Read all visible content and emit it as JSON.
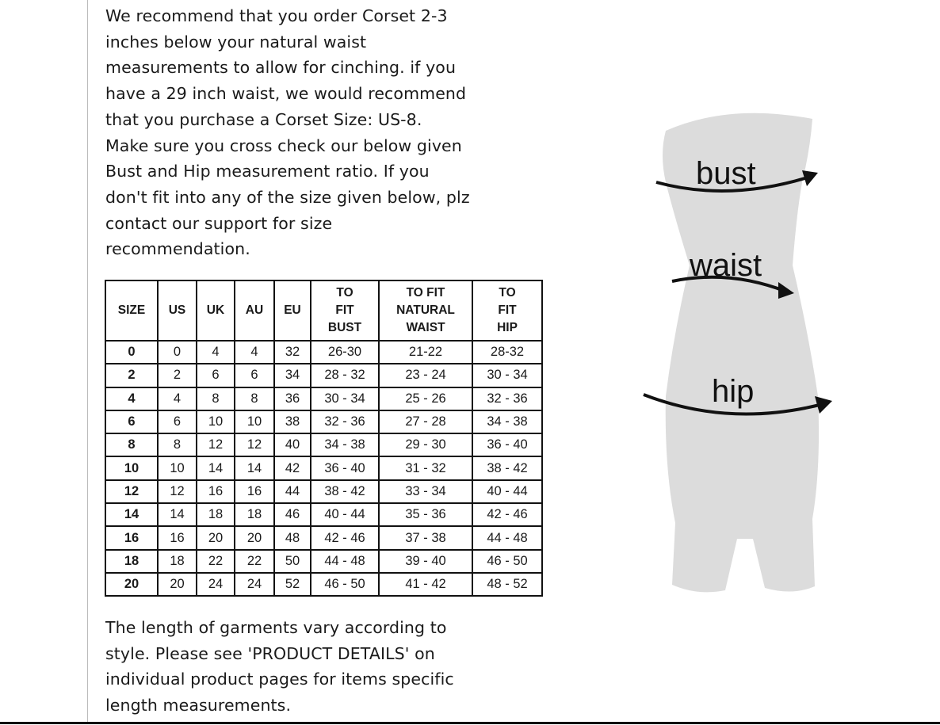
{
  "intro_lines": [
    "We recommend that you order Corset 2-3",
    "inches below your natural waist",
    "measurements to allow for cinching. if you",
    "have a 29 inch waist, we would recommend",
    "that you purchase a Corset Size: US-8.",
    "Make sure you cross check our below given",
    "Bust and Hip measurement ratio. If you",
    "don't fit into any of the size given below, plz",
    "contact our support for size",
    "recommendation."
  ],
  "table": {
    "headers": [
      "SIZE",
      "US",
      "UK",
      "AU",
      "EU",
      "TO\nFIT\nBUST",
      "TO FIT\nNATURAL\nWAIST",
      "TO\nFIT\nHIP"
    ],
    "rows": [
      [
        "0",
        "0",
        "4",
        "4",
        "32",
        "26-30",
        "21-22",
        "28-32"
      ],
      [
        "2",
        "2",
        "6",
        "6",
        "34",
        "28 - 32",
        "23 - 24",
        "30 - 34"
      ],
      [
        "4",
        "4",
        "8",
        "8",
        "36",
        "30 - 34",
        "25 - 26",
        "32 - 36"
      ],
      [
        "6",
        "6",
        "10",
        "10",
        "38",
        "32 - 36",
        "27 - 28",
        "34 - 38"
      ],
      [
        "8",
        "8",
        "12",
        "12",
        "40",
        "34 - 38",
        "29 - 30",
        "36 - 40"
      ],
      [
        "10",
        "10",
        "14",
        "14",
        "42",
        "36 - 40",
        "31 - 32",
        "38 - 42"
      ],
      [
        "12",
        "12",
        "16",
        "16",
        "44",
        "38 - 42",
        "33 - 34",
        "40 - 44"
      ],
      [
        "14",
        "14",
        "18",
        "18",
        "46",
        "40 - 44",
        "35 - 36",
        "42 - 46"
      ],
      [
        "16",
        "16",
        "20",
        "20",
        "48",
        "42 - 46",
        "37 - 38",
        "44 - 48"
      ],
      [
        "18",
        "18",
        "22",
        "22",
        "50",
        "44 - 48",
        "39 - 40",
        "46 - 50"
      ],
      [
        "20",
        "20",
        "24",
        "24",
        "52",
        "46 - 50",
        "41 - 42",
        "48 - 52"
      ]
    ]
  },
  "outro_lines": [
    "The length of garments vary according to",
    "style. Please see 'PRODUCT DETAILS'  on",
    "individual product pages for items specific",
    "length measurements."
  ],
  "figure": {
    "labels": {
      "bust": "bust",
      "waist": "waist",
      "hip": "hip"
    },
    "body_color": "#dcdcdc"
  }
}
